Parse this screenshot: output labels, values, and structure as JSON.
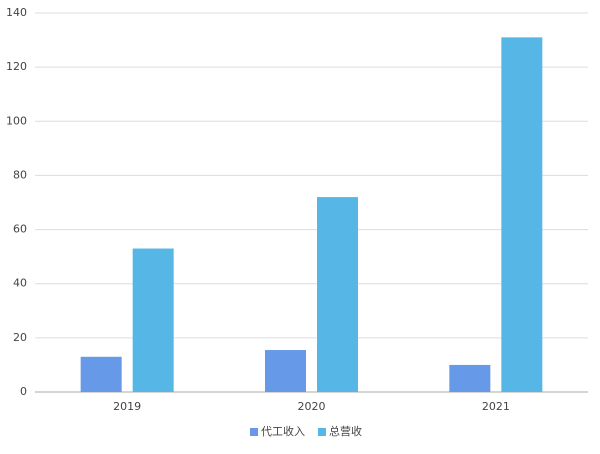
{
  "chart_data": {
    "type": "bar",
    "categories": [
      "2019",
      "2020",
      "2021"
    ],
    "series": [
      {
        "name": "代工收入",
        "color": "#6699e8",
        "values": [
          13,
          15.5,
          10
        ]
      },
      {
        "name": "总营收",
        "color": "#56b7e6",
        "values": [
          53,
          72,
          131
        ]
      }
    ],
    "ylim": [
      0,
      140
    ],
    "yticks": [
      0,
      20,
      40,
      60,
      80,
      100,
      120,
      140
    ],
    "grid": true,
    "legend": "bottom"
  }
}
